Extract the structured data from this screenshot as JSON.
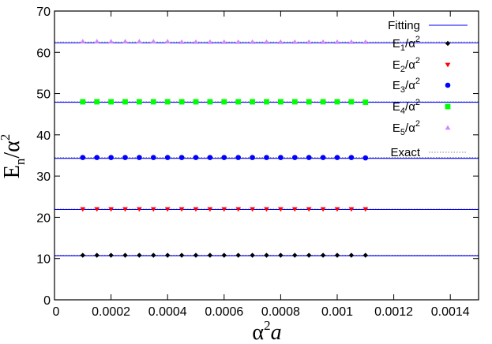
{
  "chart_data": {
    "type": "scatter",
    "xlabel": "α²a",
    "ylabel": "Eₙ/α²",
    "xlim": [
      0,
      0.0015
    ],
    "ylim": [
      0,
      70
    ],
    "x_ticks": [
      0,
      0.0002,
      0.0004,
      0.0006,
      0.0008,
      0.001,
      0.0012,
      0.0014
    ],
    "x_tick_labels": [
      "0",
      "0.0002",
      "0.0004",
      "0.0006",
      "0.0008",
      "0.001",
      "0.0012",
      "0.0014"
    ],
    "y_ticks": [
      0,
      10,
      20,
      30,
      40,
      50,
      60,
      70
    ],
    "y_tick_labels": [
      "0",
      "10",
      "20",
      "30",
      "40",
      "50",
      "60",
      "70"
    ],
    "legend_position": "top-right",
    "x": [
      0.0001,
      0.00015,
      0.0002,
      0.00025,
      0.0003,
      0.00035,
      0.0004,
      0.00045,
      0.0005,
      0.00055,
      0.0006,
      0.00065,
      0.0007,
      0.00075,
      0.0008,
      0.00085,
      0.0009,
      0.00095,
      0.001,
      0.00105,
      0.0011
    ],
    "series": [
      {
        "name": "E1/α2",
        "sub": "1",
        "marker": "diamond",
        "color": "#000000",
        "level": 10.8,
        "values": [
          10.8,
          10.8,
          10.8,
          10.8,
          10.8,
          10.8,
          10.8,
          10.8,
          10.8,
          10.8,
          10.8,
          10.8,
          10.8,
          10.8,
          10.8,
          10.8,
          10.8,
          10.8,
          10.8,
          10.8,
          10.8
        ]
      },
      {
        "name": "E2/α2",
        "sub": "2",
        "marker": "triangle-down",
        "color": "#ff0000",
        "level": 22.0,
        "values": [
          22.0,
          22.0,
          22.0,
          22.0,
          22.0,
          22.0,
          22.0,
          22.0,
          22.0,
          22.0,
          22.0,
          22.0,
          22.0,
          22.0,
          22.0,
          22.0,
          22.0,
          22.0,
          22.0,
          22.0,
          22.0
        ]
      },
      {
        "name": "E3/α2",
        "sub": "3",
        "marker": "circle",
        "color": "#0000ff",
        "level": 34.5,
        "values": [
          34.5,
          34.5,
          34.5,
          34.5,
          34.5,
          34.5,
          34.5,
          34.5,
          34.5,
          34.5,
          34.5,
          34.5,
          34.5,
          34.5,
          34.5,
          34.5,
          34.5,
          34.5,
          34.5,
          34.5,
          34.4
        ]
      },
      {
        "name": "E4/α2",
        "sub": "4",
        "marker": "square",
        "color": "#00ff00",
        "level": 48.0,
        "values": [
          48.0,
          48.0,
          48.0,
          48.0,
          48.0,
          48.0,
          48.0,
          48.0,
          48.0,
          48.0,
          48.0,
          48.0,
          48.0,
          48.0,
          48.0,
          48.0,
          48.0,
          48.0,
          48.0,
          48.0,
          47.9
        ]
      },
      {
        "name": "E5/α2",
        "sub": "5",
        "marker": "triangle-up",
        "color": "#cc88ff",
        "level": 62.5,
        "values": [
          62.6,
          62.6,
          62.6,
          62.6,
          62.6,
          62.6,
          62.6,
          62.5,
          62.5,
          62.5,
          62.5,
          62.5,
          62.5,
          62.5,
          62.5,
          62.5,
          62.5,
          62.5,
          62.5,
          62.5,
          62.5
        ]
      }
    ],
    "fitting": {
      "name": "Fitting",
      "color": "#0000ff",
      "lines": [
        10.7,
        21.9,
        34.3,
        47.9,
        62.3
      ]
    },
    "exact": {
      "name": "Exact",
      "color": "#888888",
      "lines": [
        10.8,
        22.0,
        34.5,
        48.0,
        62.5
      ]
    }
  },
  "legend": {
    "fitting_label": "Fitting",
    "exact_label": "Exact",
    "entry_prefix": "E",
    "entry_suffix": "/α"
  }
}
